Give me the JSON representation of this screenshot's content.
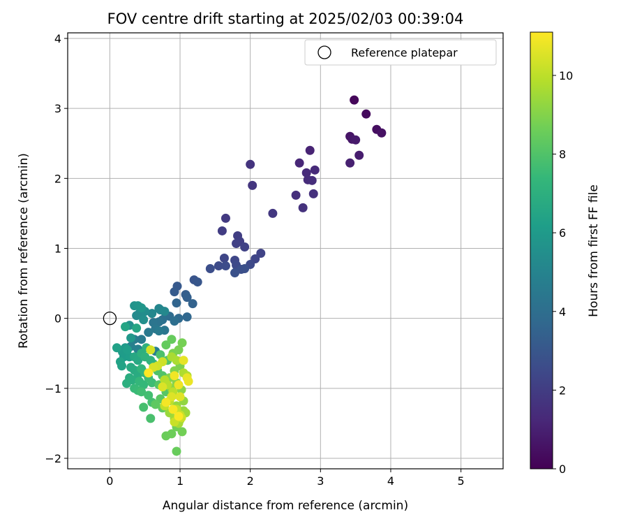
{
  "chart_data": {
    "type": "scatter",
    "title": "FOV centre drift starting at 2025/02/03 00:39:04",
    "xlabel": "Angular distance from reference (arcmin)",
    "ylabel": "Rotation from reference (arcmin)",
    "xlim": [
      -0.6,
      5.6
    ],
    "ylim": [
      -2.15,
      4.08
    ],
    "xticks": [
      0,
      1,
      2,
      3,
      4,
      5
    ],
    "yticks": [
      -2,
      -1,
      0,
      1,
      2,
      3,
      4
    ],
    "grid": true,
    "legend": {
      "placement": "top-right",
      "entries": [
        "Reference platepar"
      ]
    },
    "reference_point": {
      "name": "Reference platepar",
      "x": 0,
      "y": 0,
      "marker": "open-circle"
    },
    "colorbar": {
      "label": "Hours from first FF file",
      "range": [
        0,
        11.1
      ],
      "ticks": [
        0,
        2,
        4,
        6,
        8,
        10
      ],
      "colormap": "viridis",
      "colormap_stops": [
        "#440154",
        "#482878",
        "#3e4989",
        "#31688e",
        "#26828e",
        "#1f9e89",
        "#35b779",
        "#6ece58",
        "#b5de2b",
        "#fde725"
      ]
    },
    "points": [
      {
        "x": 3.48,
        "y": 3.12,
        "h": 0.2
      },
      {
        "x": 3.65,
        "y": 2.92,
        "h": 0.3
      },
      {
        "x": 3.8,
        "y": 2.7,
        "h": 0.4
      },
      {
        "x": 3.87,
        "y": 2.65,
        "h": 0.5
      },
      {
        "x": 3.42,
        "y": 2.6,
        "h": 0.6
      },
      {
        "x": 3.45,
        "y": 2.56,
        "h": 0.7
      },
      {
        "x": 3.5,
        "y": 2.55,
        "h": 0.8
      },
      {
        "x": 3.55,
        "y": 2.33,
        "h": 0.9
      },
      {
        "x": 3.42,
        "y": 2.22,
        "h": 1.0
      },
      {
        "x": 2.85,
        "y": 2.4,
        "h": 1.1
      },
      {
        "x": 2.7,
        "y": 2.22,
        "h": 1.2
      },
      {
        "x": 2.92,
        "y": 2.12,
        "h": 1.3
      },
      {
        "x": 2.8,
        "y": 2.08,
        "h": 1.35
      },
      {
        "x": 2.82,
        "y": 1.98,
        "h": 1.4
      },
      {
        "x": 2.88,
        "y": 1.97,
        "h": 1.45
      },
      {
        "x": 2.65,
        "y": 1.76,
        "h": 1.5
      },
      {
        "x": 2.9,
        "y": 1.78,
        "h": 1.55
      },
      {
        "x": 2.75,
        "y": 1.58,
        "h": 1.6
      },
      {
        "x": 2.0,
        "y": 2.2,
        "h": 1.7
      },
      {
        "x": 2.03,
        "y": 1.9,
        "h": 1.75
      },
      {
        "x": 2.32,
        "y": 1.5,
        "h": 1.8
      },
      {
        "x": 1.65,
        "y": 1.43,
        "h": 1.9
      },
      {
        "x": 1.6,
        "y": 1.25,
        "h": 2.0
      },
      {
        "x": 1.82,
        "y": 1.18,
        "h": 2.05
      },
      {
        "x": 1.85,
        "y": 1.1,
        "h": 2.1
      },
      {
        "x": 1.8,
        "y": 1.07,
        "h": 2.15
      },
      {
        "x": 1.92,
        "y": 1.02,
        "h": 2.2
      },
      {
        "x": 2.15,
        "y": 0.93,
        "h": 2.25
      },
      {
        "x": 2.07,
        "y": 0.85,
        "h": 2.3
      },
      {
        "x": 1.63,
        "y": 0.86,
        "h": 2.35
      },
      {
        "x": 1.78,
        "y": 0.83,
        "h": 2.4
      },
      {
        "x": 1.8,
        "y": 0.76,
        "h": 2.45
      },
      {
        "x": 2.0,
        "y": 0.77,
        "h": 2.5
      },
      {
        "x": 1.55,
        "y": 0.75,
        "h": 2.55
      },
      {
        "x": 1.65,
        "y": 0.75,
        "h": 2.6
      },
      {
        "x": 1.43,
        "y": 0.71,
        "h": 2.65
      },
      {
        "x": 1.87,
        "y": 0.7,
        "h": 2.7
      },
      {
        "x": 1.92,
        "y": 0.71,
        "h": 2.75
      },
      {
        "x": 1.78,
        "y": 0.65,
        "h": 2.8
      },
      {
        "x": 1.2,
        "y": 0.55,
        "h": 2.9
      },
      {
        "x": 1.25,
        "y": 0.52,
        "h": 3.0
      },
      {
        "x": 0.96,
        "y": 0.46,
        "h": 3.1
      },
      {
        "x": 0.92,
        "y": 0.38,
        "h": 3.2
      },
      {
        "x": 1.08,
        "y": 0.34,
        "h": 3.3
      },
      {
        "x": 1.1,
        "y": 0.3,
        "h": 3.4
      },
      {
        "x": 1.18,
        "y": 0.21,
        "h": 3.5
      },
      {
        "x": 0.95,
        "y": 0.22,
        "h": 3.6
      },
      {
        "x": 1.1,
        "y": 0.02,
        "h": 3.7
      },
      {
        "x": 0.98,
        "y": 0.0,
        "h": 3.8
      },
      {
        "x": 0.85,
        "y": 0.03,
        "h": 3.9
      },
      {
        "x": 0.8,
        "y": 0.05,
        "h": 4.0
      },
      {
        "x": 0.92,
        "y": -0.04,
        "h": 4.05
      },
      {
        "x": 0.75,
        "y": -0.02,
        "h": 4.1
      },
      {
        "x": 0.7,
        "y": -0.05,
        "h": 4.2
      },
      {
        "x": 0.62,
        "y": -0.06,
        "h": 4.3
      },
      {
        "x": 0.78,
        "y": -0.17,
        "h": 4.35
      },
      {
        "x": 0.65,
        "y": -0.15,
        "h": 4.4
      },
      {
        "x": 0.55,
        "y": -0.2,
        "h": 4.5
      },
      {
        "x": 0.7,
        "y": -0.18,
        "h": 4.55
      },
      {
        "x": 0.45,
        "y": -0.3,
        "h": 4.6
      },
      {
        "x": 0.35,
        "y": -0.3,
        "h": 4.7
      },
      {
        "x": 0.65,
        "y": -0.47,
        "h": 4.8
      },
      {
        "x": 0.3,
        "y": -0.4,
        "h": 4.85
      },
      {
        "x": 0.4,
        "y": -0.44,
        "h": 4.9
      },
      {
        "x": 0.72,
        "y": 0.12,
        "h": 5.0
      },
      {
        "x": 0.7,
        "y": 0.14,
        "h": 5.1
      },
      {
        "x": 0.6,
        "y": 0.07,
        "h": 5.15
      },
      {
        "x": 0.78,
        "y": 0.1,
        "h": 5.2
      },
      {
        "x": 0.38,
        "y": 0.04,
        "h": 5.3
      },
      {
        "x": 0.42,
        "y": 0.07,
        "h": 5.35
      },
      {
        "x": 0.5,
        "y": 0.1,
        "h": 5.4
      },
      {
        "x": 0.48,
        "y": -0.02,
        "h": 5.5
      },
      {
        "x": 0.28,
        "y": -0.1,
        "h": 5.6
      },
      {
        "x": 0.35,
        "y": 0.18,
        "h": 5.7
      },
      {
        "x": 0.4,
        "y": 0.18,
        "h": 5.75
      },
      {
        "x": 0.45,
        "y": 0.15,
        "h": 5.8
      },
      {
        "x": 0.3,
        "y": -0.28,
        "h": 5.9
      },
      {
        "x": 0.22,
        "y": -0.42,
        "h": 6.0
      },
      {
        "x": 0.18,
        "y": -0.48,
        "h": 6.05
      },
      {
        "x": 0.2,
        "y": -0.55,
        "h": 6.1
      },
      {
        "x": 0.28,
        "y": -0.55,
        "h": 6.15
      },
      {
        "x": 0.25,
        "y": -0.45,
        "h": 6.2
      },
      {
        "x": 0.1,
        "y": -0.42,
        "h": 6.3
      },
      {
        "x": 0.15,
        "y": -0.62,
        "h": 6.35
      },
      {
        "x": 0.17,
        "y": -0.68,
        "h": 6.4
      },
      {
        "x": 0.22,
        "y": -0.12,
        "h": 6.5
      },
      {
        "x": 0.38,
        "y": -0.14,
        "h": 6.55
      },
      {
        "x": 0.35,
        "y": -0.55,
        "h": 6.6
      },
      {
        "x": 0.4,
        "y": -0.6,
        "h": 6.65
      },
      {
        "x": 0.3,
        "y": -0.7,
        "h": 6.7
      },
      {
        "x": 0.35,
        "y": -0.74,
        "h": 6.75
      },
      {
        "x": 0.4,
        "y": -0.8,
        "h": 6.8
      },
      {
        "x": 0.28,
        "y": -0.85,
        "h": 6.85
      },
      {
        "x": 0.32,
        "y": -0.88,
        "h": 6.9
      },
      {
        "x": 0.24,
        "y": -0.93,
        "h": 6.95
      },
      {
        "x": 0.45,
        "y": -0.5,
        "h": 7.0
      },
      {
        "x": 0.52,
        "y": -0.42,
        "h": 7.05
      },
      {
        "x": 0.5,
        "y": -0.55,
        "h": 7.1
      },
      {
        "x": 0.58,
        "y": -0.6,
        "h": 7.15
      },
      {
        "x": 0.62,
        "y": -0.65,
        "h": 7.2
      },
      {
        "x": 0.45,
        "y": -0.72,
        "h": 7.25
      },
      {
        "x": 0.5,
        "y": -0.78,
        "h": 7.3
      },
      {
        "x": 0.42,
        "y": -0.9,
        "h": 7.35
      },
      {
        "x": 0.48,
        "y": -0.95,
        "h": 7.4
      },
      {
        "x": 0.35,
        "y": -1.0,
        "h": 7.45
      },
      {
        "x": 0.4,
        "y": -1.03,
        "h": 7.5
      },
      {
        "x": 0.55,
        "y": -0.85,
        "h": 7.55
      },
      {
        "x": 0.6,
        "y": -0.92,
        "h": 7.6
      },
      {
        "x": 0.45,
        "y": -1.05,
        "h": 7.65
      },
      {
        "x": 0.55,
        "y": -1.1,
        "h": 7.7
      },
      {
        "x": 0.6,
        "y": -1.2,
        "h": 7.75
      },
      {
        "x": 0.48,
        "y": -1.27,
        "h": 7.8
      },
      {
        "x": 0.58,
        "y": -1.43,
        "h": 7.85
      },
      {
        "x": 0.72,
        "y": -0.52,
        "h": 7.9
      },
      {
        "x": 0.68,
        "y": -0.75,
        "h": 7.95
      },
      {
        "x": 0.75,
        "y": -0.82,
        "h": 8.0
      },
      {
        "x": 0.82,
        "y": -0.6,
        "h": 8.05
      },
      {
        "x": 0.7,
        "y": -0.95,
        "h": 8.1
      },
      {
        "x": 0.8,
        "y": -1.05,
        "h": 8.15
      },
      {
        "x": 0.72,
        "y": -1.15,
        "h": 8.2
      },
      {
        "x": 0.65,
        "y": -1.23,
        "h": 8.3
      },
      {
        "x": 0.75,
        "y": -1.28,
        "h": 8.35
      },
      {
        "x": 0.8,
        "y": -0.38,
        "h": 8.4
      },
      {
        "x": 0.88,
        "y": -0.3,
        "h": 8.45
      },
      {
        "x": 0.95,
        "y": -1.9,
        "h": 8.5
      },
      {
        "x": 0.8,
        "y": -1.68,
        "h": 8.55
      },
      {
        "x": 0.88,
        "y": -1.65,
        "h": 8.6
      },
      {
        "x": 0.95,
        "y": -1.55,
        "h": 8.65
      },
      {
        "x": 1.03,
        "y": -1.62,
        "h": 8.7
      },
      {
        "x": 1.03,
        "y": -0.35,
        "h": 8.75
      },
      {
        "x": 0.98,
        "y": -0.45,
        "h": 8.8
      },
      {
        "x": 0.9,
        "y": -0.5,
        "h": 8.85
      },
      {
        "x": 1.0,
        "y": -0.68,
        "h": 8.9
      },
      {
        "x": 0.92,
        "y": -0.75,
        "h": 8.95
      },
      {
        "x": 0.85,
        "y": -0.85,
        "h": 9.0
      },
      {
        "x": 0.95,
        "y": -0.92,
        "h": 9.05
      },
      {
        "x": 0.88,
        "y": -1.0,
        "h": 9.1
      },
      {
        "x": 1.02,
        "y": -1.02,
        "h": 9.15
      },
      {
        "x": 0.9,
        "y": -1.1,
        "h": 9.2
      },
      {
        "x": 1.05,
        "y": -1.18,
        "h": 9.25
      },
      {
        "x": 0.95,
        "y": -1.25,
        "h": 9.3
      },
      {
        "x": 1.05,
        "y": -1.32,
        "h": 9.35
      },
      {
        "x": 0.85,
        "y": -1.35,
        "h": 9.4
      },
      {
        "x": 1.08,
        "y": -1.35,
        "h": 9.45
      },
      {
        "x": 0.92,
        "y": -1.43,
        "h": 9.5
      },
      {
        "x": 1.0,
        "y": -1.45,
        "h": 9.55
      },
      {
        "x": 0.98,
        "y": -1.5,
        "h": 9.6
      },
      {
        "x": 0.88,
        "y": -0.55,
        "h": 9.65
      },
      {
        "x": 0.95,
        "y": -0.6,
        "h": 9.7
      },
      {
        "x": 1.05,
        "y": -0.78,
        "h": 9.75
      },
      {
        "x": 1.1,
        "y": -0.82,
        "h": 9.8
      },
      {
        "x": 0.78,
        "y": -0.88,
        "h": 9.85
      },
      {
        "x": 0.82,
        "y": -0.95,
        "h": 9.9
      },
      {
        "x": 0.9,
        "y": -1.05,
        "h": 9.95
      },
      {
        "x": 0.85,
        "y": -1.18,
        "h": 10.0
      },
      {
        "x": 0.78,
        "y": -1.25,
        "h": 10.05
      },
      {
        "x": 0.95,
        "y": -1.3,
        "h": 10.1
      },
      {
        "x": 1.0,
        "y": -1.38,
        "h": 10.15
      },
      {
        "x": 0.92,
        "y": -1.48,
        "h": 10.2
      },
      {
        "x": 1.02,
        "y": -1.42,
        "h": 10.25
      },
      {
        "x": 0.75,
        "y": -0.62,
        "h": 10.3
      },
      {
        "x": 0.68,
        "y": -0.68,
        "h": 10.35
      },
      {
        "x": 0.58,
        "y": -0.45,
        "h": 10.4
      },
      {
        "x": 0.62,
        "y": -0.7,
        "h": 10.45
      },
      {
        "x": 0.75,
        "y": -0.98,
        "h": 10.5
      },
      {
        "x": 0.88,
        "y": -1.12,
        "h": 10.55
      },
      {
        "x": 1.0,
        "y": -1.12,
        "h": 10.6
      },
      {
        "x": 1.05,
        "y": -0.6,
        "h": 10.7
      },
      {
        "x": 1.1,
        "y": -0.85,
        "h": 10.75
      },
      {
        "x": 1.12,
        "y": -0.9,
        "h": 10.8
      },
      {
        "x": 0.98,
        "y": -0.95,
        "h": 10.85
      },
      {
        "x": 0.92,
        "y": -0.82,
        "h": 10.9
      },
      {
        "x": 0.8,
        "y": -1.2,
        "h": 10.95
      },
      {
        "x": 0.9,
        "y": -1.3,
        "h": 11.0
      },
      {
        "x": 0.98,
        "y": -1.4,
        "h": 11.05
      },
      {
        "x": 0.55,
        "y": -0.78,
        "h": 11.1
      }
    ]
  }
}
